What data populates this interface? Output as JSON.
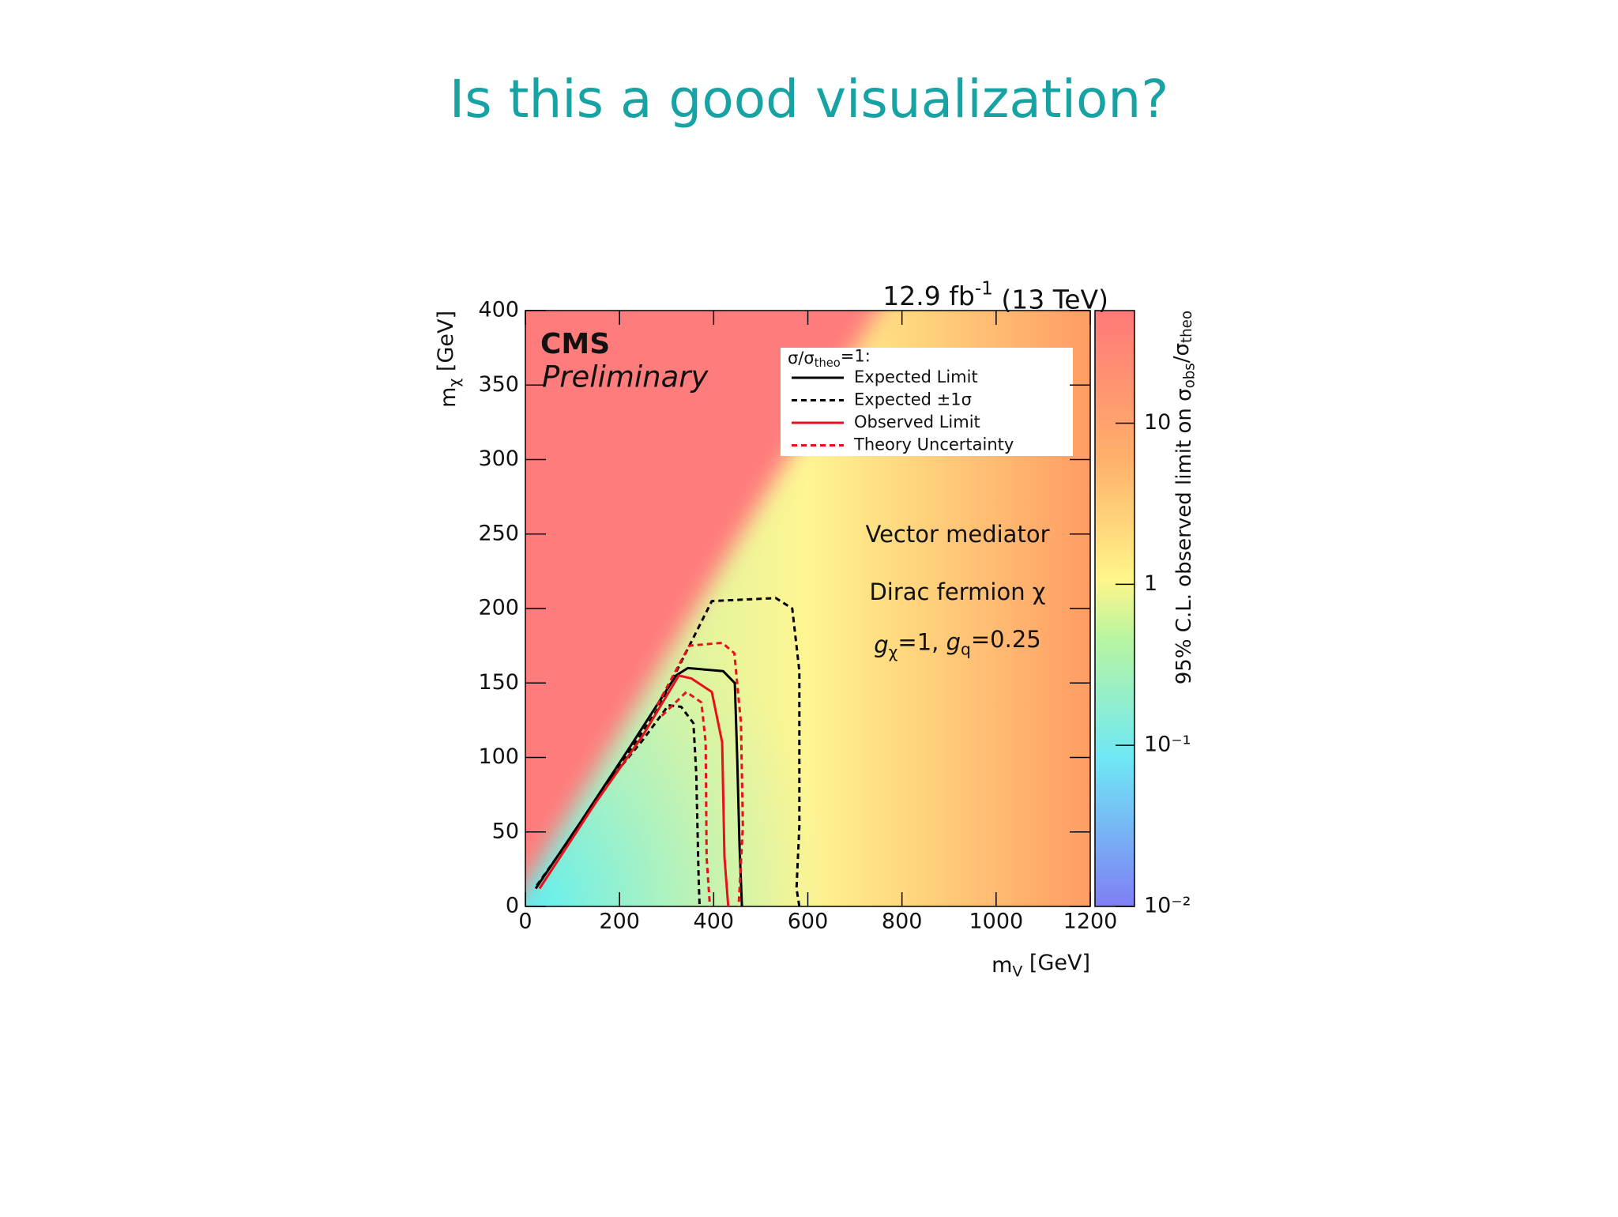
{
  "slide": {
    "title": "Is this a good visualization?"
  },
  "chart_data": {
    "type": "contour",
    "luminosity_label": [
      {
        "text": "12.9 fb"
      },
      {
        "text": "-1",
        "sup": true
      },
      {
        "text": " (13 TeV)"
      }
    ],
    "experiment": "CMS",
    "status": "Preliminary",
    "annotations": [
      [
        {
          "text": "Vector mediator"
        }
      ],
      [
        {
          "text": "Dirac fermion χ"
        }
      ],
      [
        {
          "text": "g",
          "italic": true
        },
        {
          "text": "χ",
          "sub": true
        },
        {
          "text": "=1, "
        },
        {
          "text": "g",
          "italic": true
        },
        {
          "text": "q",
          "sub": true
        },
        {
          "text": "=0.25"
        }
      ]
    ],
    "xlabel": [
      {
        "text": "m"
      },
      {
        "text": "V",
        "sub": true
      },
      {
        "text": " [GeV]"
      }
    ],
    "ylabel": [
      {
        "text": "m"
      },
      {
        "text": "χ",
        "sub": true
      },
      {
        "text": " [GeV]"
      }
    ],
    "xlim": [
      0,
      1200
    ],
    "xticks": [
      0,
      200,
      400,
      600,
      800,
      1000,
      1200
    ],
    "ylim": [
      0,
      400
    ],
    "yticks": [
      0,
      50,
      100,
      150,
      200,
      250,
      300,
      350,
      400
    ],
    "colorbar": {
      "label": [
        {
          "text": "95% C.L. observed limit on σ"
        },
        {
          "text": "obs",
          "sub": true
        },
        {
          "text": "/σ"
        },
        {
          "text": "theo",
          "sub": true
        }
      ],
      "log": true,
      "lim": [
        0.01,
        50
      ],
      "ticks": [
        {
          "value": 0.01,
          "label": "10⁻²"
        },
        {
          "value": 0.1,
          "label": "10⁻¹"
        },
        1,
        10
      ]
    },
    "legend": {
      "title": [
        {
          "text": "σ/σ"
        },
        {
          "text": "theo",
          "sub": true
        },
        {
          "text": "=1:"
        }
      ],
      "loc": "upper right"
    },
    "series": [
      {
        "name": "Expected Limit",
        "color": "#000000",
        "dashed": false,
        "x": [
          22,
          120,
          220,
          320,
          345,
          420,
          445,
          450,
          455,
          460
        ],
        "y": [
          12,
          58,
          106,
          155,
          160,
          158,
          150,
          100,
          40,
          0
        ]
      },
      {
        "name": "Expected ±1σ",
        "color": "#000000",
        "dashed": true,
        "x": [
          24,
          150,
          280,
          396,
          532,
          567,
          582,
          582,
          576,
          582,
          null,
          180,
          250,
          304,
          331,
          357,
          363,
          368,
          370
        ],
        "y": [
          14,
          70,
          132,
          205,
          207,
          200,
          158,
          54,
          12,
          0,
          null,
          85,
          112,
          135,
          134,
          123,
          89,
          19,
          0
        ]
      },
      {
        "name": "Observed Limit",
        "color": "#e8101a",
        "dashed": false,
        "x": [
          30,
          150,
          250,
          326,
          353,
          396,
          418,
          423,
          431
        ],
        "y": [
          12,
          70,
          115,
          155,
          153,
          144,
          110,
          33,
          0
        ]
      },
      {
        "name": "Theory Uncertainty",
        "color": "#e8101a",
        "dashed": true,
        "x": [
          280,
          348,
          418,
          444,
          458,
          462,
          453,
          null,
          290,
          342,
          374,
          383,
          385,
          392
        ],
        "y": [
          135,
          175,
          177,
          170,
          123,
          54,
          0,
          null,
          128,
          144,
          137,
          110,
          33,
          0
        ]
      }
    ]
  }
}
